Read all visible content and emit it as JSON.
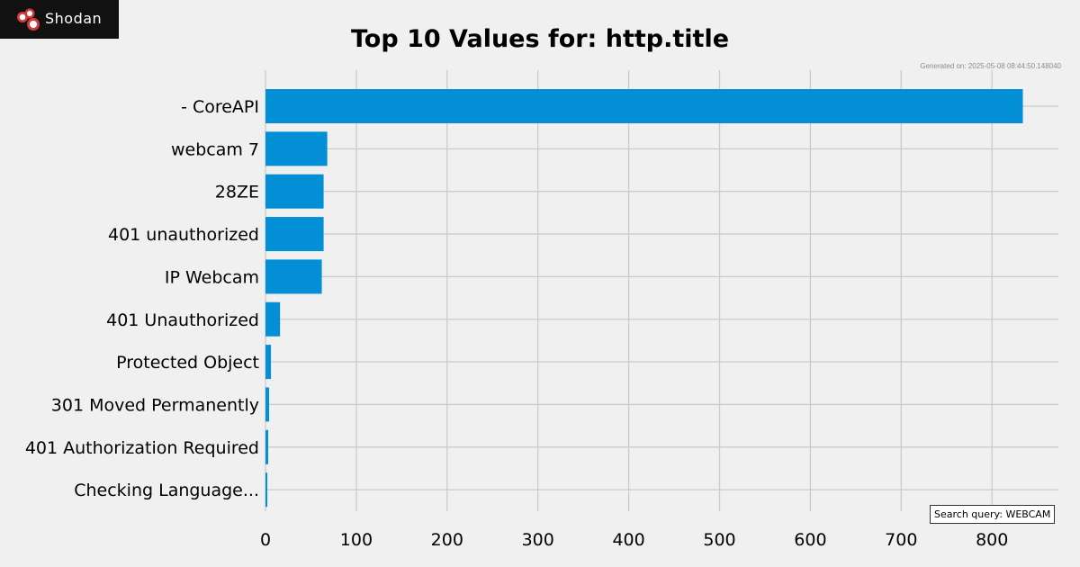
{
  "brand": {
    "name": "Shodan",
    "logo_icon": "shodan-logo-icon"
  },
  "generated_text": "Generated on: 2025-05-08 08:44:50.148040",
  "search_query_text": "Search query: WEBCAM",
  "colors": {
    "bar": "#038fd6",
    "grid": "#cbcbcb",
    "background": "#f0f0f0"
  },
  "chart_data": {
    "type": "bar",
    "orientation": "horizontal",
    "title": "Top 10 Values for: http.title",
    "xlabel": "",
    "ylabel": "",
    "categories": [
      "- CoreAPI",
      "webcam 7",
      "28ZE",
      "401 unauthorized",
      "IP Webcam",
      "401 Unauthorized",
      "Protected Object",
      "301 Moved Permanently",
      "401 Authorization Required",
      "Checking Language..."
    ],
    "values": [
      834,
      68,
      64,
      64,
      62,
      16,
      6,
      4,
      3,
      2
    ],
    "xticks": [
      "0",
      "100",
      "200",
      "300",
      "400",
      "500",
      "600",
      "700",
      "800"
    ],
    "xlim": [
      0,
      870
    ],
    "grid": true
  }
}
